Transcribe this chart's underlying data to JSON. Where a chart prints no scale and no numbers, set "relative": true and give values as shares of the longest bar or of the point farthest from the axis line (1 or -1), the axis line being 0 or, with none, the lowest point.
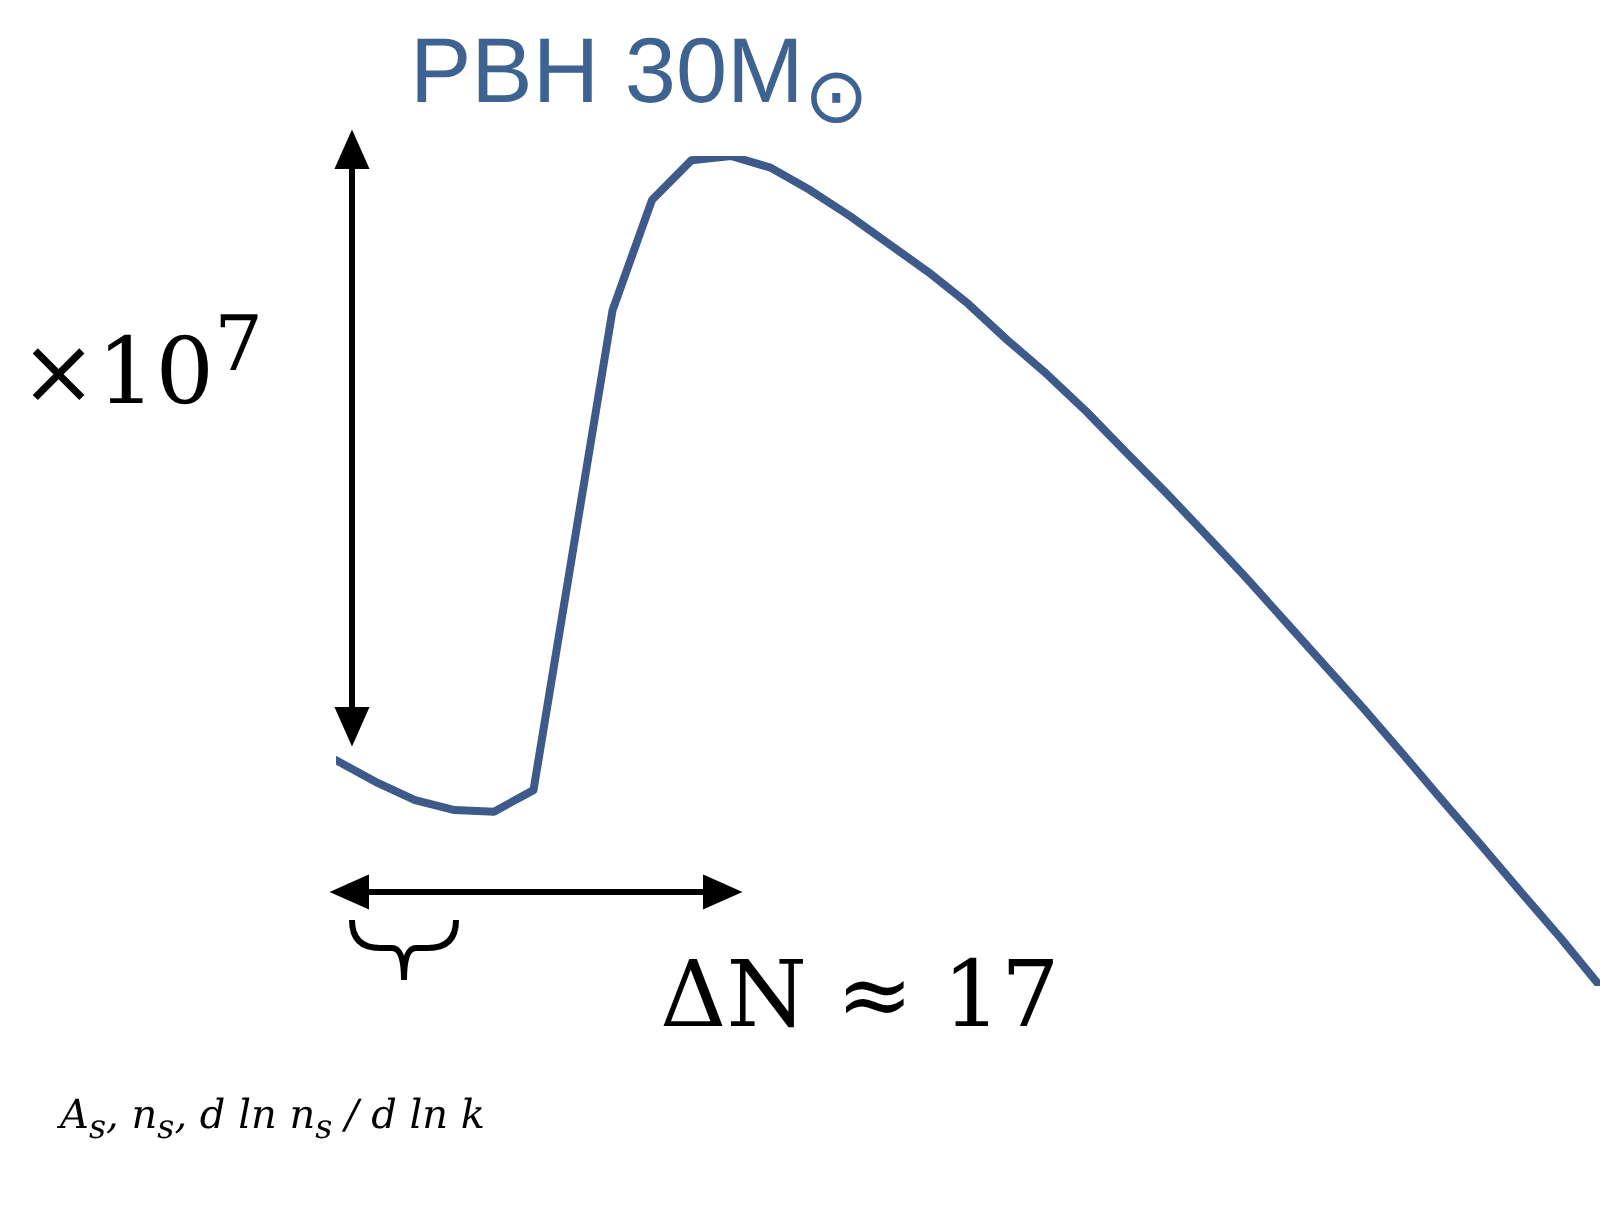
{
  "chart_data": {
    "type": "line",
    "title": "PBH 30M$_{⊙}$",
    "relative": true,
    "marker": "none",
    "line_style": "solid",
    "annotations": [
      "×10$^{7}$",
      "ΔN ≈ 17",
      "A$_{s}$, n$_{s}$, d ln n$_{s}$ / d ln k"
    ],
    "categories": [
      null,
      null,
      null,
      null,
      null,
      null,
      null,
      null,
      null,
      null,
      null,
      null,
      null,
      null,
      null,
      null,
      null,
      null,
      null,
      null,
      null,
      null,
      null,
      null,
      null,
      null,
      null,
      null,
      null,
      null,
      null,
      null,
      null
    ],
    "series": [
      {
        "color": "#3d5a8a",
        "values": [
          0.272,
          0.246,
          0.224,
          0.212,
          0.21,
          0.236,
          0.525,
          0.814,
          0.947,
          0.995,
          1,
          0.986,
          0.959,
          0.928,
          0.894,
          0.86,
          0.822,
          0.778,
          0.737,
          0.692,
          0.643,
          0.595,
          0.545,
          0.494,
          0.441,
          0.388,
          0.335,
          0.28,
          0.224,
          0.169,
          0.113,
          0.058,
          0
        ]
      }
    ]
  }
}
